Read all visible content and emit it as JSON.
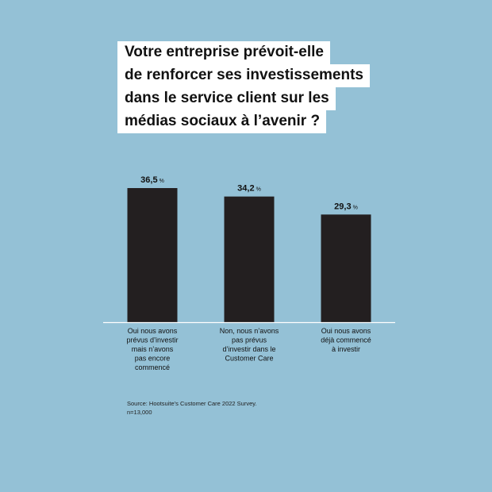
{
  "title_lines": [
    "Votre entreprise prévoit-elle",
    "de renforcer ses investissements",
    "dans le service client sur les",
    "médias sociaux à l’avenir ?"
  ],
  "chart_data": {
    "type": "bar",
    "title": "Votre entreprise prévoit-elle de renforcer ses investissements dans le service client sur les médias sociaux à l’avenir ?",
    "categories": [
      [
        "Oui nous avons",
        "prévus d’investir",
        "mais n’avons",
        "pas encore",
        "commencé"
      ],
      [
        "Non, nous n’avons",
        "pas prévus",
        "d’investir dans le",
        "Customer Care"
      ],
      [
        "Oui nous avons",
        "déjà commencé",
        "à investir"
      ]
    ],
    "values": [
      36.5,
      34.2,
      29.3
    ],
    "value_labels": [
      "36,5",
      "34,2",
      "29,3"
    ],
    "unit": "%",
    "ylim": [
      0,
      36.5
    ],
    "grid": false,
    "legend": "none",
    "bar_color": "#231f20",
    "axis_color": "#ffffff"
  },
  "source": {
    "line1": "Source: Hootsuite’s Customer Care 2022 Survey.",
    "line2": "n=13,000"
  }
}
